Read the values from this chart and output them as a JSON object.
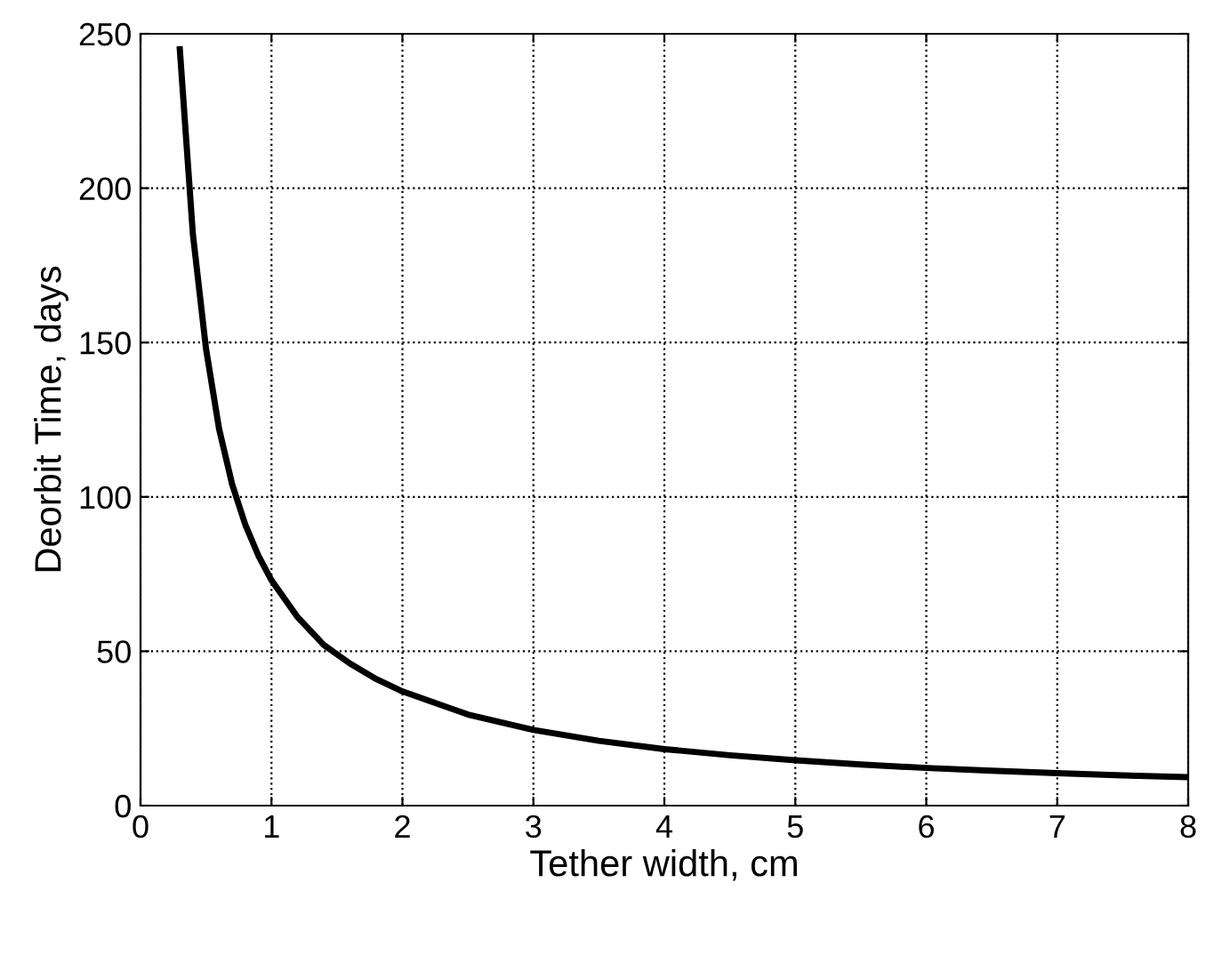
{
  "chart_data": {
    "type": "line",
    "xlabel": "Tether width, cm",
    "ylabel": "Deorbit Time, days",
    "x": [
      0.3,
      0.4,
      0.5,
      0.6,
      0.7,
      0.8,
      0.9,
      1.0,
      1.2,
      1.4,
      1.6,
      1.8,
      2.0,
      2.5,
      3.0,
      3.5,
      4.0,
      4.5,
      5.0,
      5.5,
      6.0,
      6.5,
      7.0,
      7.5,
      8.0
    ],
    "series": [
      {
        "color": "#000000",
        "values": [
          245,
          185,
          148,
          122,
          104,
          91,
          81,
          73,
          61,
          52,
          46,
          41,
          37,
          29.5,
          24.5,
          21,
          18.3,
          16.3,
          14.7,
          13.3,
          12.2,
          11.3,
          10.5,
          9.8,
          9.2
        ]
      }
    ],
    "xlim": [
      0,
      8
    ],
    "ylim": [
      0,
      250
    ],
    "xticks": [
      0,
      1,
      2,
      3,
      4,
      5,
      6,
      7,
      8
    ],
    "yticks": [
      0,
      50,
      100,
      150,
      200,
      250
    ],
    "grid": true,
    "line_style": "solid",
    "marker": "none"
  }
}
